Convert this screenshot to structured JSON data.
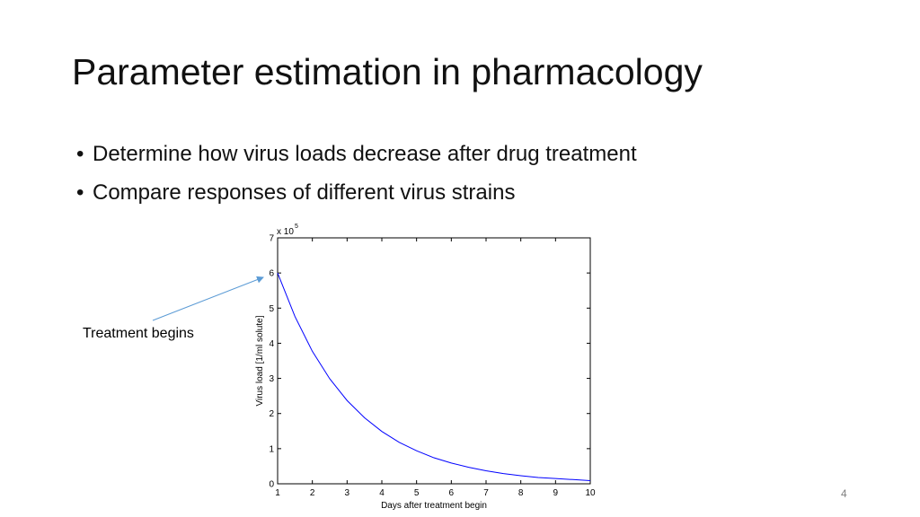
{
  "slide": {
    "title": "Parameter estimation in pharmacology",
    "bullets": [
      "Determine how virus loads decrease after drug treatment",
      "Compare responses of different virus strains"
    ],
    "bullet_symbol": "•",
    "annotation": "Treatment begins",
    "page_number": "4",
    "arrow_color": "#5b9bd5"
  },
  "chart_data": {
    "type": "line",
    "xlabel": "Days after treatment begin",
    "ylabel": "Virus load [1/ml solute]",
    "y_scale_label": "x 10",
    "y_scale_exponent": "5",
    "xlim": [
      1,
      10
    ],
    "ylim": [
      0,
      7
    ],
    "x_ticks": [
      1,
      2,
      3,
      4,
      5,
      6,
      7,
      8,
      9,
      10
    ],
    "y_ticks": [
      0,
      1,
      2,
      3,
      4,
      5,
      6,
      7
    ],
    "grid": false,
    "series": [
      {
        "color": "#0000ff",
        "x": [
          1,
          1.5,
          2,
          2.5,
          3,
          3.5,
          4,
          4.5,
          5,
          5.5,
          6,
          6.5,
          7,
          7.5,
          8,
          8.5,
          9,
          9.5,
          10
        ],
        "y": [
          6.0,
          4.76,
          3.77,
          2.99,
          2.37,
          1.88,
          1.49,
          1.18,
          0.94,
          0.74,
          0.59,
          0.47,
          0.37,
          0.29,
          0.23,
          0.18,
          0.15,
          0.12,
          0.09
        ]
      }
    ]
  }
}
